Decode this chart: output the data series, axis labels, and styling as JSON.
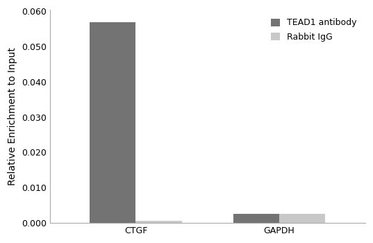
{
  "categories": [
    "CTGF",
    "GAPDH"
  ],
  "series": [
    {
      "label": "TEAD1 antibody",
      "values": [
        0.057,
        0.0025
      ],
      "color": "#737373"
    },
    {
      "label": "Rabbit IgG",
      "values": [
        0.0006,
        0.0025
      ],
      "color": "#c8c8c8"
    }
  ],
  "ylabel": "Relative Enrichment to Input",
  "ylim": [
    0,
    0.0605
  ],
  "yticks": [
    0.0,
    0.01,
    0.02,
    0.03,
    0.04,
    0.05,
    0.06
  ],
  "ytick_labels": [
    "0.000",
    "0.010",
    "0.020",
    "0.030",
    "0.040",
    "0.050",
    "0.060"
  ],
  "bar_width": 0.32,
  "background_color": "#ffffff",
  "legend_fontsize": 9,
  "axis_fontsize": 10,
  "tick_fontsize": 9
}
